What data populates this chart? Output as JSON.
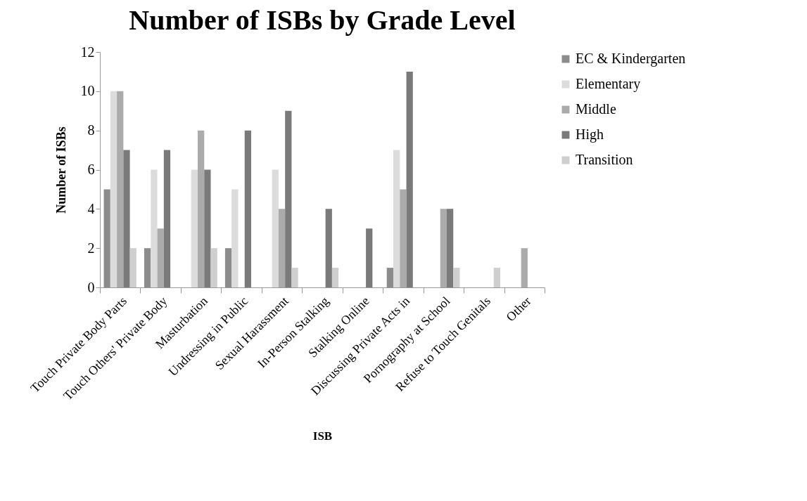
{
  "chart_data": {
    "type": "bar",
    "title": "Number of ISBs by Grade Level",
    "xlabel": "ISB",
    "ylabel": "Number of ISBs",
    "categories": [
      "Touch Private Body Parts",
      "Touch Others' Private Body",
      "Masturbation",
      "Undressing in Public",
      "Sexual Harassment",
      "In-Person Stalking",
      "Stalking Online",
      "Discussing Private Acts in",
      "Pornography at School",
      "Refuse to Touch Genitals",
      "Other"
    ],
    "series": [
      {
        "name": "EC & Kindergarten",
        "color": "#8c8c8c",
        "values": [
          5,
          2,
          0,
          2,
          0,
          0,
          0,
          1,
          0,
          0,
          0
        ]
      },
      {
        "name": "Elementary",
        "color": "#dcdcdc",
        "values": [
          10,
          6,
          6,
          5,
          6,
          0,
          0,
          7,
          0,
          0,
          0
        ]
      },
      {
        "name": "Middle",
        "color": "#ababab",
        "values": [
          10,
          3,
          8,
          0,
          4,
          0,
          0,
          5,
          4,
          0,
          2
        ]
      },
      {
        "name": "High",
        "color": "#7a7a7a",
        "values": [
          7,
          7,
          6,
          8,
          9,
          4,
          3,
          11,
          4,
          0,
          0
        ]
      },
      {
        "name": "Transition",
        "color": "#cfcfcf",
        "values": [
          2,
          0,
          2,
          0,
          1,
          1,
          0,
          0,
          1,
          1,
          0
        ]
      }
    ],
    "ylim": [
      0,
      12
    ],
    "yticks": [
      0,
      2,
      4,
      6,
      8,
      10,
      12
    ],
    "grid": false,
    "legend": "right"
  }
}
